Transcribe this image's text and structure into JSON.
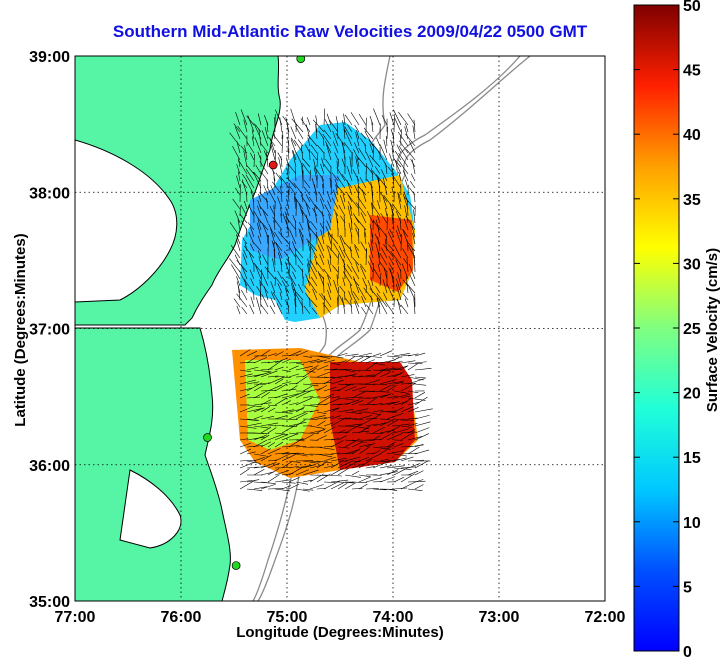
{
  "title": "Southern Mid-Atlantic Raw Velocities 2009/04/22 0500 GMT",
  "xaxis": {
    "label": "Longitude (Degrees:Minutes)",
    "ticks": [
      "77:00",
      "76:00",
      "75:00",
      "74:00",
      "73:00",
      "72:00"
    ]
  },
  "yaxis": {
    "label": "Latitude (Degrees:Minutes)",
    "ticks": [
      "39:00",
      "38:00",
      "37:00",
      "36:00",
      "35:00"
    ]
  },
  "colorbar": {
    "label": "Surface Velocity (cm/s)",
    "ticks": [
      "50",
      "45",
      "40",
      "35",
      "30",
      "25",
      "20",
      "15",
      "10",
      "5",
      "0"
    ],
    "range": [
      0,
      50
    ],
    "colormap": "jet"
  },
  "colors": {
    "title": "#1010e0",
    "land": "#55f5a5",
    "coastline": "#000000",
    "bathymetry": "#8a8a8a",
    "station": "#22d922",
    "station_active": "#e01818"
  },
  "chart_data": {
    "type": "map",
    "lon_range": [
      -77.0,
      -72.0
    ],
    "lat_range": [
      35.0,
      39.0
    ],
    "grid": true,
    "stations": [
      {
        "lon": -74.87,
        "lat": 38.98,
        "status": "green"
      },
      {
        "lon": -75.13,
        "lat": 38.2,
        "status": "red"
      },
      {
        "lon": -75.75,
        "lat": 36.2,
        "status": "green"
      },
      {
        "lon": -75.48,
        "lat": 35.26,
        "status": "green"
      }
    ]
  }
}
